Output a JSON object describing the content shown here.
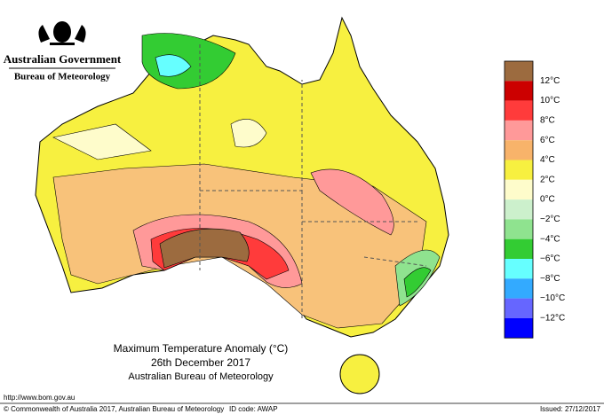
{
  "header": {
    "government": "Australian Government",
    "agency": "Bureau of Meteorology"
  },
  "map": {
    "title": "Maximum Temperature Anomaly (°C)",
    "date": "26th December 2017",
    "source": "Australian Bureau of Meteorology"
  },
  "legend": {
    "labels": [
      "12°C",
      "10°C",
      "8°C",
      "6°C",
      "4°C",
      "2°C",
      "0°C",
      "−2°C",
      "−4°C",
      "−6°C",
      "−8°C",
      "−10°C",
      "−12°C"
    ]
  },
  "footer": {
    "url": "http://www.bom.gov.au",
    "copyright": "© Commonwealth of Australia 2017, Australian Bureau of Meteorology",
    "id_code": "ID code: AWAP",
    "issued": "Issued: 27/12/2017"
  }
}
